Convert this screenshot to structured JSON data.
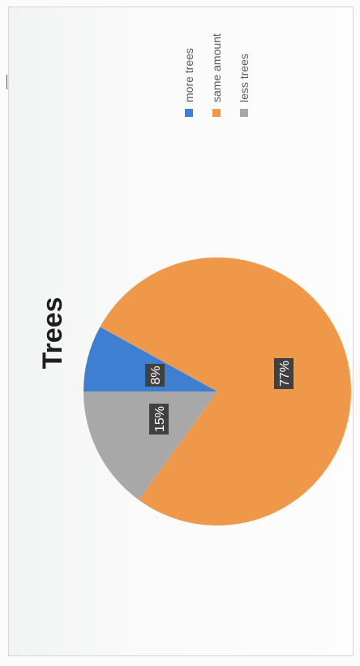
{
  "chart_data": {
    "type": "pie",
    "title": "Trees",
    "orientation": "rotated 90° clockwise",
    "legend_position": "top-right",
    "slices": [
      {
        "label": "more trees",
        "value": 8,
        "display": "8%",
        "color": "#3f7fd1"
      },
      {
        "label": "same amount",
        "value": 77,
        "display": "77%",
        "color": "#f0984a"
      },
      {
        "label": "less trees",
        "value": 15,
        "display": "15%",
        "color": "#a8a8a8"
      }
    ]
  }
}
